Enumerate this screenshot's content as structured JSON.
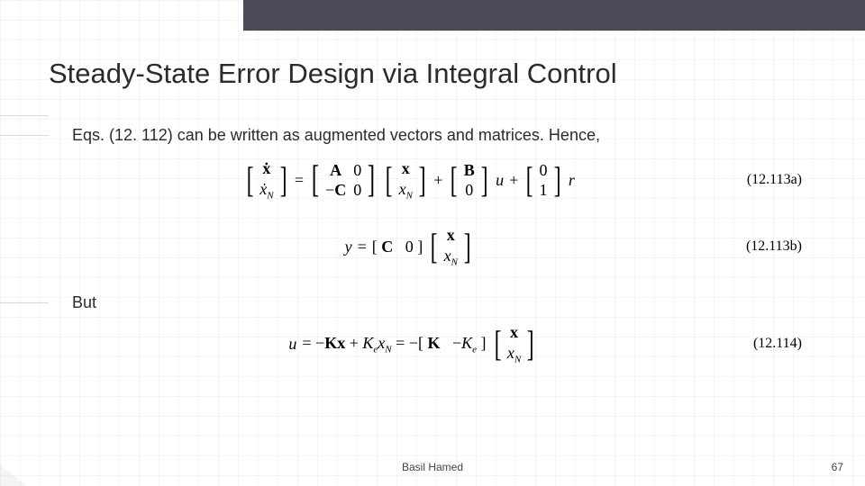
{
  "colors": {
    "topbar": "#4a4a5a",
    "grid": "rgba(100,100,130,0.06)",
    "text": "#2b2b2b",
    "background": "#ffffff"
  },
  "typography": {
    "title_fontsize": 31,
    "body_fontsize": 18,
    "eq_fontsize": 18,
    "eq_label_fontsize": 16,
    "footer_fontsize": 12,
    "title_font": "Verdana",
    "eq_font": "Times New Roman"
  },
  "title": "Steady-State Error Design via Integral Control",
  "body": {
    "line1": "Eqs. (12. 112) can be written as augmented vectors and matrices. Hence,",
    "line2": "But"
  },
  "equations": {
    "eqA": {
      "lhs_vec": [
        "ẋ",
        "ẋ_N"
      ],
      "A_matrix": [
        [
          "A",
          "0"
        ],
        [
          "−C",
          "0"
        ]
      ],
      "state_vec": [
        "x",
        "x_N"
      ],
      "B_vec": [
        "B",
        "0"
      ],
      "u_sym": "u",
      "r_coeff_vec": [
        "0",
        "1"
      ],
      "r_sym": "r",
      "label": "(12.113a)"
    },
    "eqB": {
      "y_sym": "y",
      "C_row": [
        "C",
        "0"
      ],
      "state_vec": [
        "x",
        "x_N"
      ],
      "label": "(12.113b)"
    },
    "eqC": {
      "u_sym": "u",
      "rhs_terms": "= −Kx + K_e x_N = −",
      "K_row": [
        "K",
        "−K_e"
      ],
      "state_vec": [
        "x",
        "x_N"
      ],
      "label": "(12.114)"
    }
  },
  "footer": {
    "author": "Basil Hamed",
    "page": "67"
  }
}
